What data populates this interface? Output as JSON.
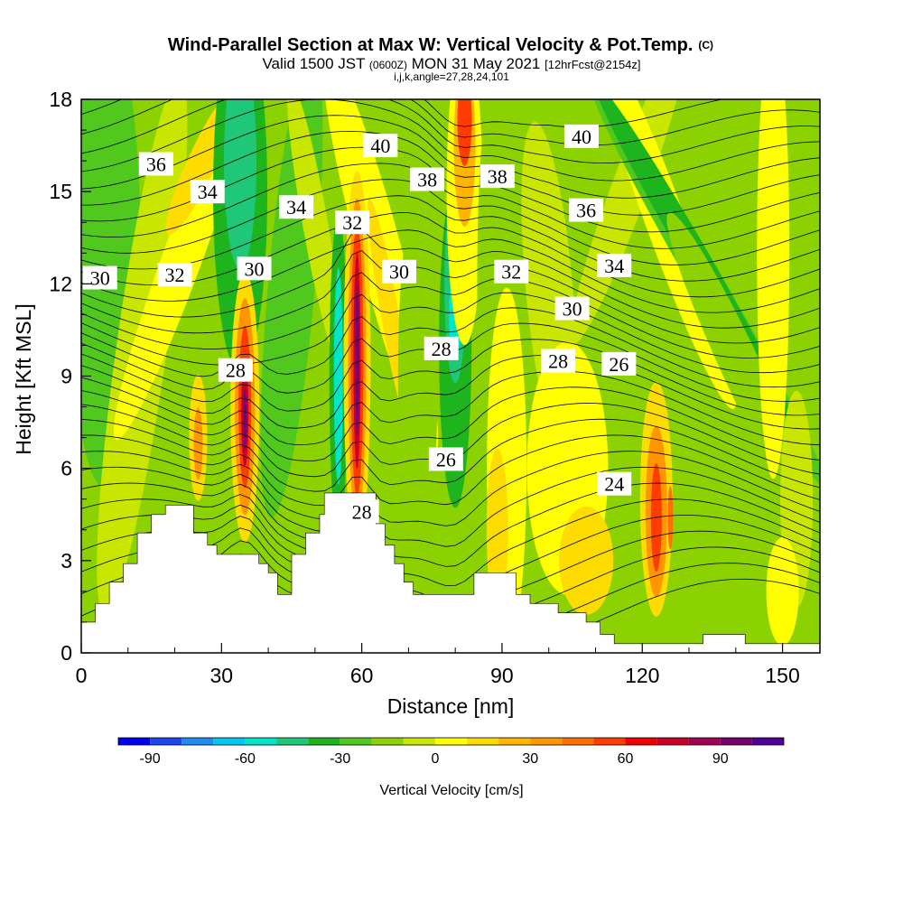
{
  "title": {
    "main": "Wind-Parallel Section at Max W: Vertical Velocity & Pot.Temp.",
    "main_suffix": "(C)",
    "valid_prefix": "Valid 1500 JST",
    "valid_utc": "(0600Z)",
    "valid_date": "MON 31 May 2021",
    "forecast": "[12hrFcst@2154z]",
    "params": "i,j,k,angle=27,28,24,101"
  },
  "chart_data": {
    "type": "heatmap",
    "xlabel": "Distance [nm]",
    "ylabel": "Height [Kft MSL]",
    "xlim": [
      0,
      158
    ],
    "ylim": [
      0,
      18
    ],
    "x_ticks": [
      0,
      30,
      60,
      90,
      120,
      150
    ],
    "y_ticks": [
      0,
      3,
      6,
      9,
      12,
      15,
      18
    ],
    "grid": false,
    "colorbar": {
      "label": "Vertical Velocity [cm/s]",
      "placement": "bottom",
      "range": [
        -100,
        110
      ],
      "step": 10,
      "tick_values": [
        -90,
        -60,
        -30,
        0,
        30,
        60,
        90
      ],
      "colors": [
        "#0000f0",
        "#1e46f0",
        "#1e8cf0",
        "#00c8f0",
        "#00e6c8",
        "#1ec878",
        "#1eb41e",
        "#50c81e",
        "#8cd200",
        "#c8e600",
        "#ffff00",
        "#ffdc00",
        "#ffb400",
        "#ff9600",
        "#ff6e00",
        "#ff3c00",
        "#f00000",
        "#c80028",
        "#a00050",
        "#78006e",
        "#500096"
      ]
    },
    "potential_temperature": {
      "units": "C",
      "contour_labels": [
        {
          "text": "40",
          "x": 64,
          "y": 16.5
        },
        {
          "text": "40",
          "x": 107,
          "y": 16.8
        },
        {
          "text": "38",
          "x": 74,
          "y": 15.4
        },
        {
          "text": "38",
          "x": 89,
          "y": 15.5
        },
        {
          "text": "36",
          "x": 16,
          "y": 15.9
        },
        {
          "text": "36",
          "x": 108,
          "y": 14.4
        },
        {
          "text": "34",
          "x": 27,
          "y": 15.0
        },
        {
          "text": "34",
          "x": 46,
          "y": 14.5
        },
        {
          "text": "34",
          "x": 114,
          "y": 12.6
        },
        {
          "text": "32",
          "x": 58,
          "y": 14.0
        },
        {
          "text": "32",
          "x": 20,
          "y": 12.3
        },
        {
          "text": "32",
          "x": 92,
          "y": 12.4
        },
        {
          "text": "30",
          "x": 4,
          "y": 12.2
        },
        {
          "text": "30",
          "x": 37,
          "y": 12.5
        },
        {
          "text": "30",
          "x": 68,
          "y": 12.4
        },
        {
          "text": "30",
          "x": 105,
          "y": 11.2
        },
        {
          "text": "28",
          "x": 33,
          "y": 9.2
        },
        {
          "text": "28",
          "x": 77,
          "y": 9.9
        },
        {
          "text": "28",
          "x": 102,
          "y": 9.5
        },
        {
          "text": "28",
          "x": 60,
          "y": 4.6
        },
        {
          "text": "26",
          "x": 78,
          "y": 6.3
        },
        {
          "text": "26",
          "x": 115,
          "y": 9.4
        },
        {
          "text": "24",
          "x": 114,
          "y": 5.5
        }
      ]
    },
    "terrain_kft": [
      [
        0,
        1.0
      ],
      [
        3,
        1.0
      ],
      [
        3,
        1.6
      ],
      [
        6,
        1.6
      ],
      [
        6,
        2.3
      ],
      [
        9,
        2.3
      ],
      [
        9,
        2.9
      ],
      [
        12,
        2.9
      ],
      [
        12,
        3.9
      ],
      [
        15,
        3.9
      ],
      [
        15,
        4.5
      ],
      [
        18,
        4.5
      ],
      [
        18,
        4.8
      ],
      [
        24,
        4.8
      ],
      [
        24,
        3.9
      ],
      [
        27,
        3.9
      ],
      [
        27,
        3.5
      ],
      [
        29,
        3.5
      ],
      [
        29,
        3.2
      ],
      [
        38,
        3.2
      ],
      [
        38,
        2.9
      ],
      [
        40,
        2.9
      ],
      [
        40,
        2.6
      ],
      [
        42,
        2.6
      ],
      [
        42,
        1.9
      ],
      [
        45,
        1.9
      ],
      [
        45,
        3.2
      ],
      [
        48,
        3.2
      ],
      [
        48,
        3.9
      ],
      [
        51,
        3.9
      ],
      [
        51,
        4.5
      ],
      [
        52,
        4.5
      ],
      [
        52,
        5.2
      ],
      [
        63,
        5.2
      ],
      [
        63,
        4.2
      ],
      [
        65,
        4.2
      ],
      [
        65,
        3.5
      ],
      [
        67,
        3.5
      ],
      [
        67,
        2.9
      ],
      [
        69,
        2.9
      ],
      [
        69,
        2.3
      ],
      [
        71,
        2.3
      ],
      [
        71,
        1.9
      ],
      [
        84,
        1.9
      ],
      [
        84,
        2.6
      ],
      [
        93,
        2.6
      ],
      [
        93,
        1.9
      ],
      [
        96,
        1.9
      ],
      [
        96,
        1.6
      ],
      [
        102,
        1.6
      ],
      [
        102,
        1.3
      ],
      [
        108,
        1.3
      ],
      [
        108,
        1.0
      ],
      [
        111,
        1.0
      ],
      [
        111,
        0.6
      ],
      [
        114,
        0.6
      ],
      [
        114,
        0.3
      ],
      [
        133,
        0.3
      ],
      [
        133,
        0.6
      ],
      [
        142,
        0.6
      ],
      [
        142,
        0.3
      ],
      [
        158,
        0.3
      ]
    ]
  }
}
